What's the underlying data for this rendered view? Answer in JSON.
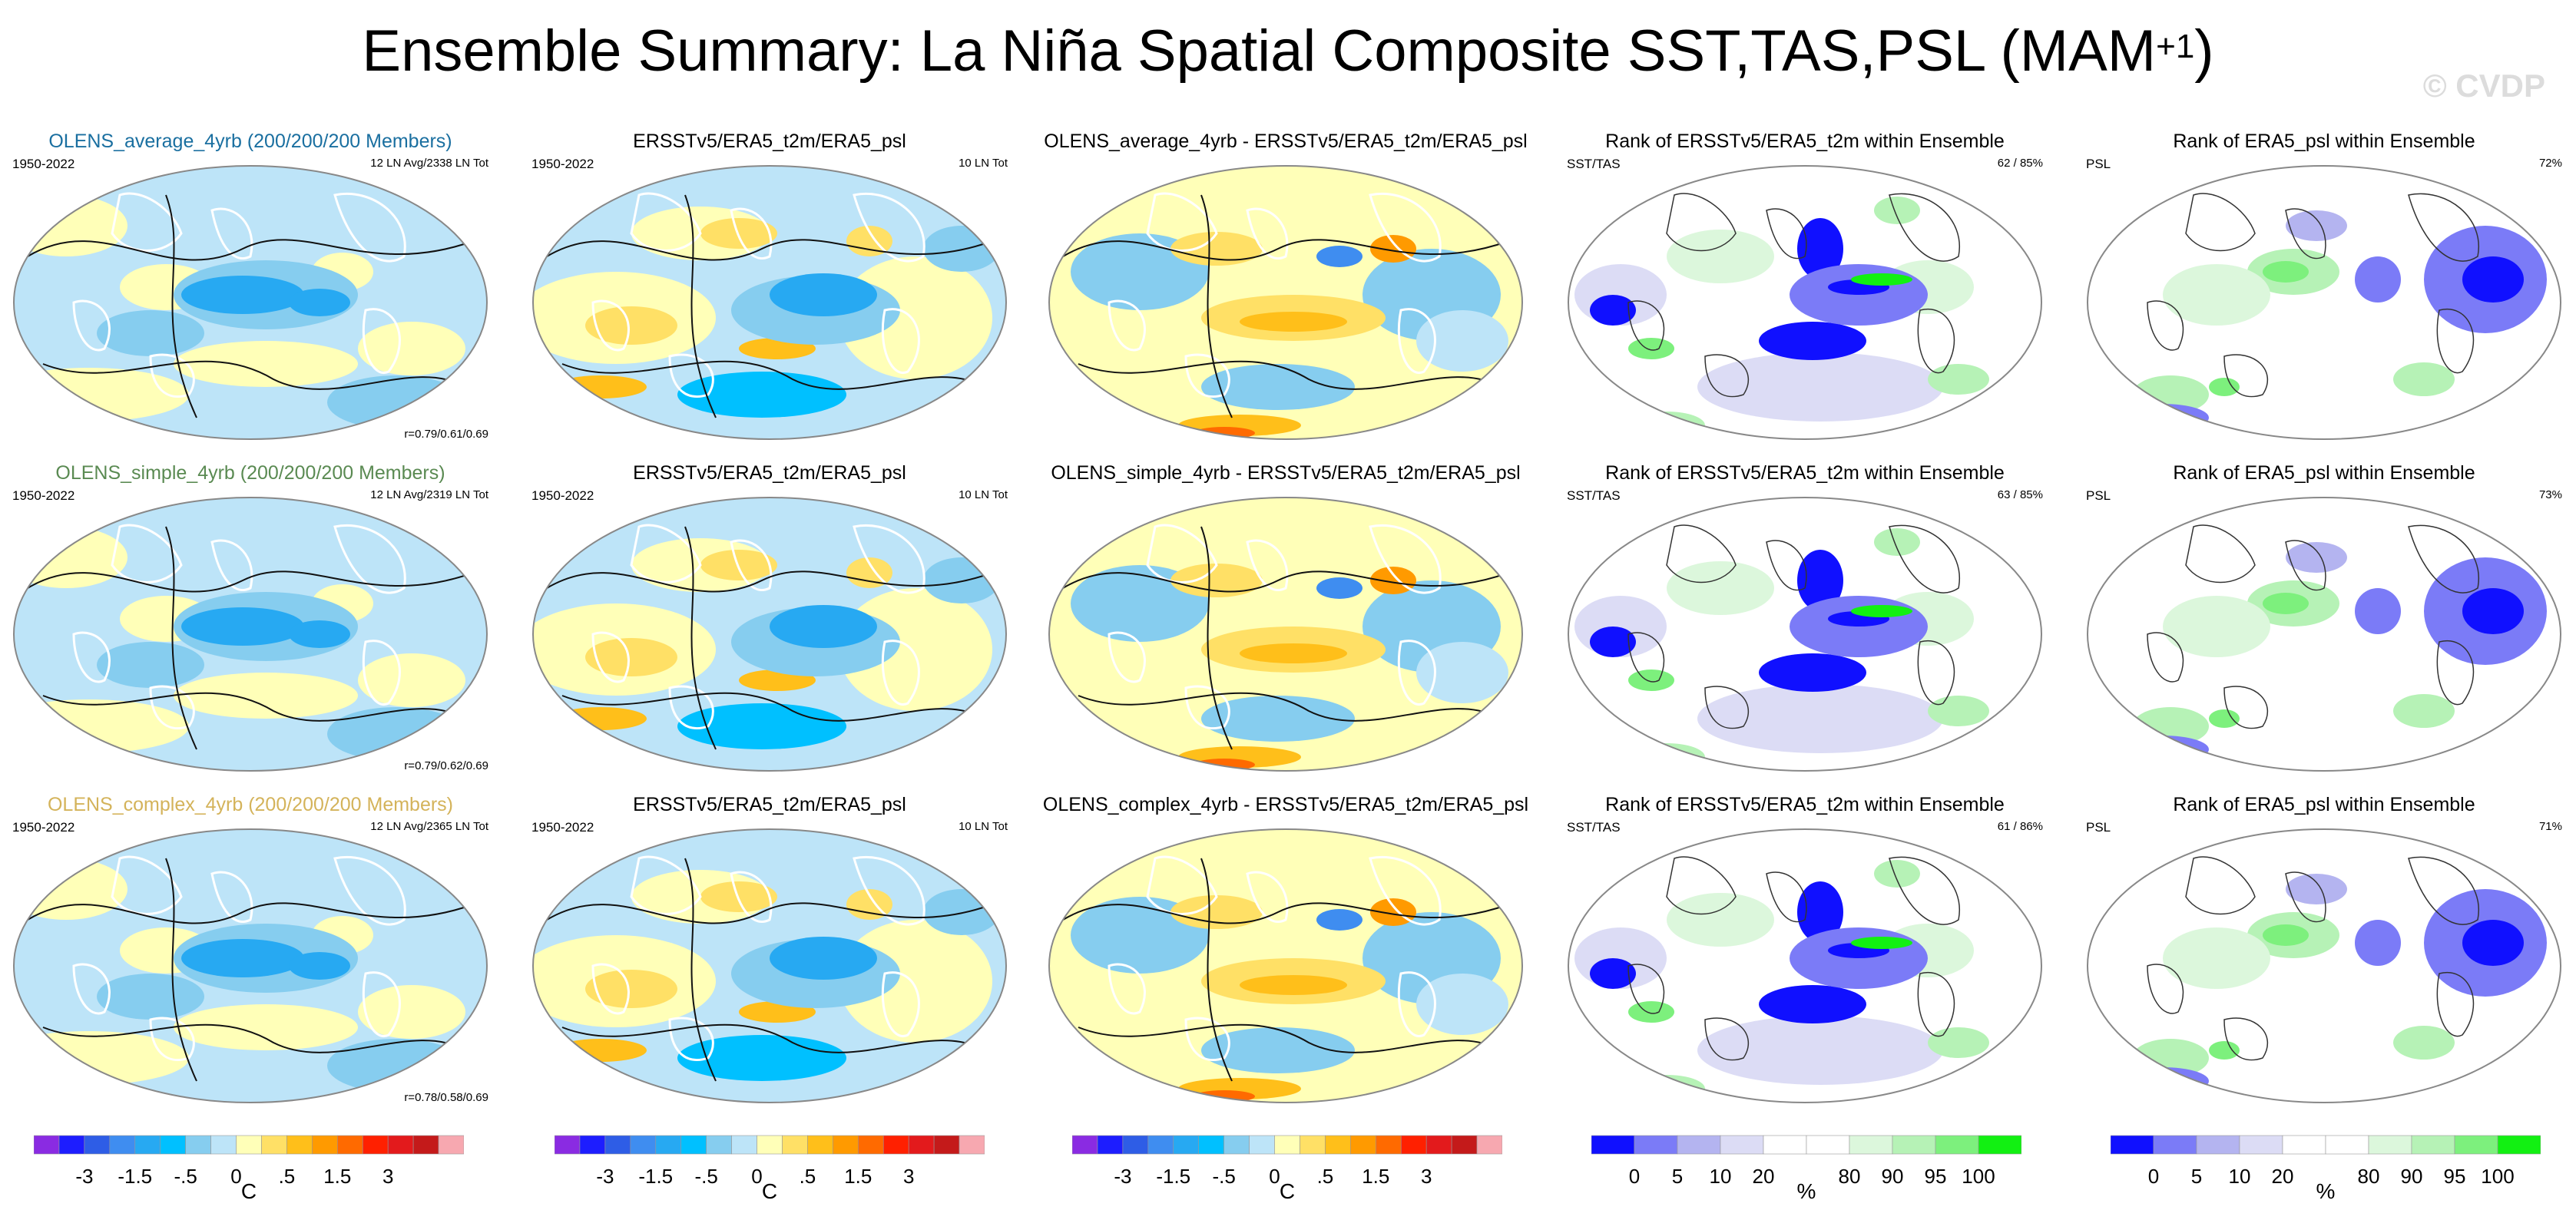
{
  "figure": {
    "title_main": "Ensemble Summary: La Niña Spatial Composite SST,TAS,PSL (MAM",
    "title_sup": "+1",
    "title_end": ")",
    "watermark": "© CVDP"
  },
  "colors": {
    "blue_title": "#1a6fa0",
    "green_title": "#5a8a52",
    "gold_title": "#d4b35a",
    "ocean_pale": "#a6d8f2",
    "land": "#ffffff"
  },
  "rows": [
    {
      "model": {
        "title": "OLENS_average_4yrb (200/200/200 Members)",
        "title_color": "#1a6fa0",
        "years": "1950-2022",
        "note": "12 LN Avg/2338 LN Tot",
        "corr": "r=0.79/0.61/0.69"
      },
      "obs": {
        "title": "ERSSTv5/ERA5_t2m/ERA5_psl",
        "years": "1950-2022",
        "note": "10 LN Tot"
      },
      "diff": {
        "title": "OLENS_average_4yrb - ERSSTv5/ERA5_t2m/ERA5_psl"
      },
      "rank1": {
        "title": "Rank of ERSSTv5/ERA5_t2m within Ensemble",
        "left": "SST/TAS",
        "right": "62 / 85%"
      },
      "rank2": {
        "title": "Rank of ERA5_psl within Ensemble",
        "left": "PSL",
        "right": "72%"
      }
    },
    {
      "model": {
        "title": "OLENS_simple_4yrb (200/200/200 Members)",
        "title_color": "#5a8a52",
        "years": "1950-2022",
        "note": "12 LN Avg/2319 LN Tot",
        "corr": "r=0.79/0.62/0.69"
      },
      "obs": {
        "title": "ERSSTv5/ERA5_t2m/ERA5_psl",
        "years": "1950-2022",
        "note": "10 LN Tot"
      },
      "diff": {
        "title": "OLENS_simple_4yrb - ERSSTv5/ERA5_t2m/ERA5_psl"
      },
      "rank1": {
        "title": "Rank of ERSSTv5/ERA5_t2m within Ensemble",
        "left": "SST/TAS",
        "right": "63 / 85%"
      },
      "rank2": {
        "title": "Rank of ERA5_psl within Ensemble",
        "left": "PSL",
        "right": "73%"
      }
    },
    {
      "model": {
        "title": "OLENS_complex_4yrb (200/200/200 Members)",
        "title_color": "#d4b35a",
        "years": "1950-2022",
        "note": "12 LN Avg/2365 LN Tot",
        "corr": "r=0.78/0.58/0.69"
      },
      "obs": {
        "title": "ERSSTv5/ERA5_t2m/ERA5_psl",
        "years": "1950-2022",
        "note": "10 LN Tot"
      },
      "diff": {
        "title": "OLENS_complex_4yrb - ERSSTv5/ERA5_t2m/ERA5_psl"
      },
      "rank1": {
        "title": "Rank of ERSSTv5/ERA5_t2m within Ensemble",
        "left": "SST/TAS",
        "right": "61 / 86%"
      },
      "rank2": {
        "title": "Rank of ERA5_psl within Ensemble",
        "left": "PSL",
        "right": "71%"
      }
    }
  ],
  "colorbars": {
    "temp": {
      "colors": [
        "#8a2be2",
        "#1d1dff",
        "#2e5de6",
        "#3f8df0",
        "#27a9f2",
        "#00c0ff",
        "#86cdef",
        "#bde4f8",
        "#ffffb8",
        "#ffe066",
        "#ffbf1a",
        "#ff9a00",
        "#ff6a00",
        "#ff2000",
        "#e31a1c",
        "#c41a1a",
        "#f7a8b0"
      ],
      "ticks": [
        "-3",
        "-1.5",
        "-.5",
        "0",
        ".5",
        "1.5",
        "3"
      ],
      "tick_boundaries": [
        2,
        4,
        6,
        8,
        10,
        12,
        14
      ],
      "unit": "C"
    },
    "rank": {
      "colors": [
        "#1010ff",
        "#7b7bf7",
        "#b4b4f0",
        "#dcdcf5",
        "#ffffff",
        "#ffffff",
        "#dcf7dc",
        "#b6f2b6",
        "#7df07d",
        "#12f012"
      ],
      "ticks": [
        "0",
        "5",
        "10",
        "20",
        "80",
        "90",
        "95",
        "100"
      ],
      "tick_boundaries": [
        1,
        2,
        3,
        4,
        6,
        7,
        8,
        9
      ],
      "unit": "%"
    }
  }
}
